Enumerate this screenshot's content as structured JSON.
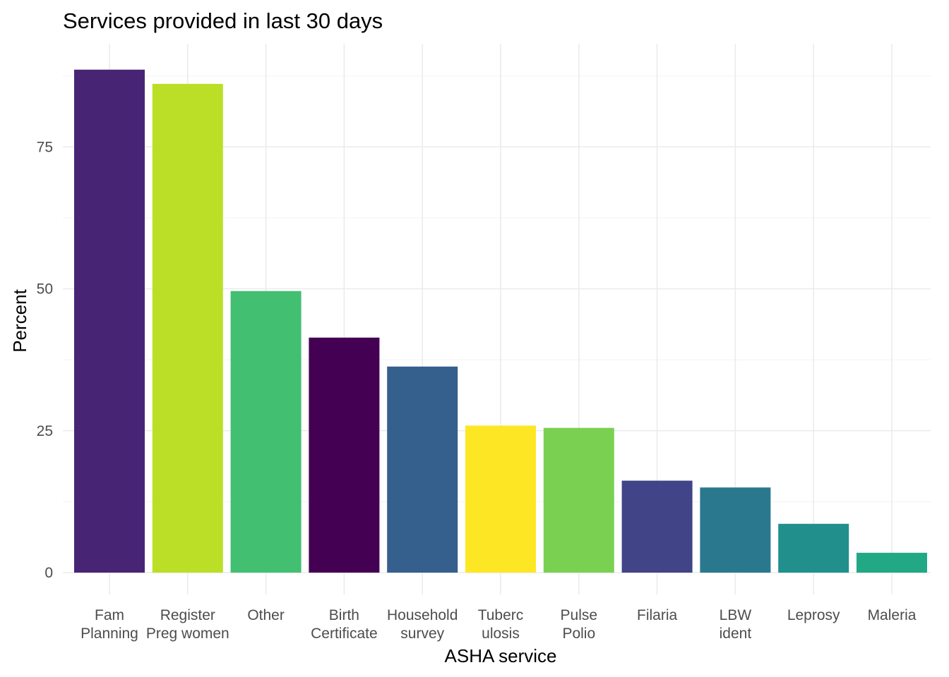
{
  "chart_data": {
    "type": "bar",
    "title": "Services provided in last 30 days",
    "xlabel": "ASHA service",
    "ylabel": "Percent",
    "ylim": [
      0,
      90
    ],
    "yticks": [
      0,
      25,
      50,
      75
    ],
    "grid": true,
    "legend": "none",
    "categories": [
      [
        "Fam",
        "Planning"
      ],
      [
        "Register",
        "Preg women"
      ],
      [
        "Other"
      ],
      [
        "Birth",
        "Certificate"
      ],
      [
        "Household",
        "survey"
      ],
      [
        "Tuberc",
        "ulosis"
      ],
      [
        "Pulse",
        "Polio"
      ],
      [
        "Filaria"
      ],
      [
        "LBW",
        "ident"
      ],
      [
        "Leprosy"
      ],
      [
        "Maleria"
      ]
    ],
    "values": [
      88.6,
      86.1,
      49.6,
      41.4,
      36.3,
      25.9,
      25.5,
      16.2,
      15.0,
      8.6,
      3.5
    ],
    "colors": [
      "#482475",
      "#BBDF27",
      "#43BF71",
      "#440154",
      "#355F8D",
      "#FDE725",
      "#7AD151",
      "#414487",
      "#2A788E",
      "#21908C",
      "#22A884"
    ]
  }
}
